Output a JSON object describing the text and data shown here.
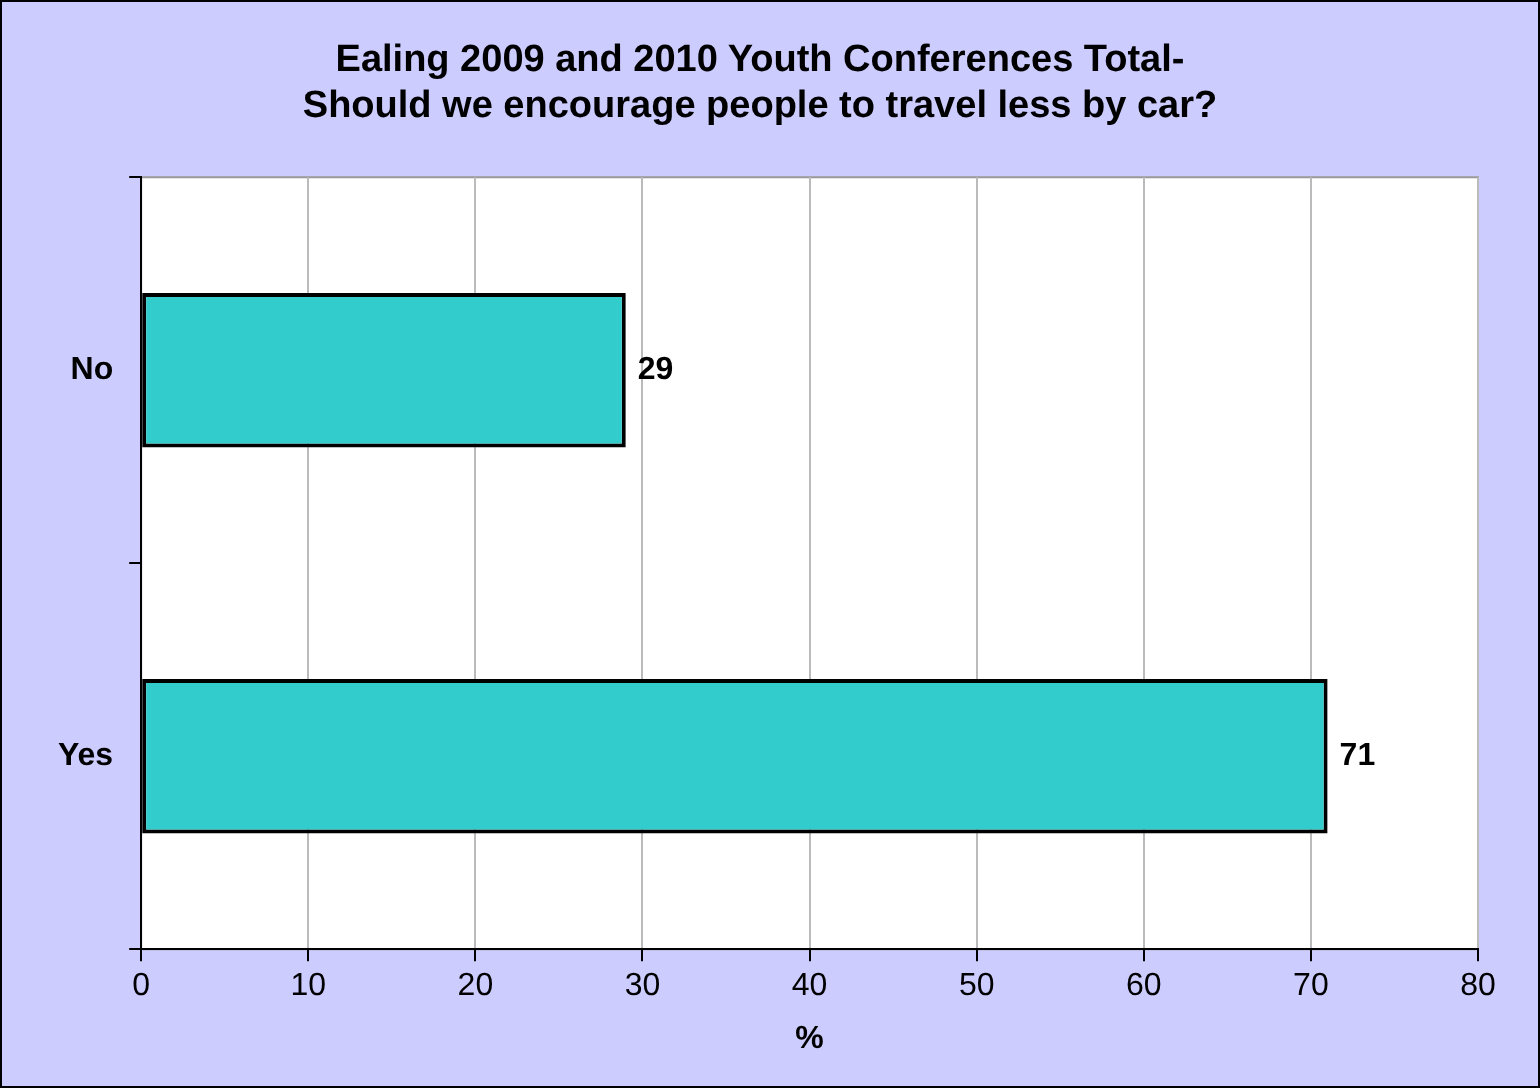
{
  "chart_data": {
    "type": "bar",
    "orientation": "horizontal",
    "title": "Ealing 2009 and 2010 Youth Conferences Total-\nShould we encourage people to travel less by car?",
    "xlabel": "%",
    "categories": [
      "No",
      "Yes"
    ],
    "values": [
      29,
      71
    ],
    "color": "#33cccc",
    "xlim": [
      0,
      80
    ],
    "xticks": [
      0,
      10,
      20,
      30,
      40,
      50,
      60,
      70,
      80
    ],
    "grid": "x",
    "data_labels": true
  }
}
